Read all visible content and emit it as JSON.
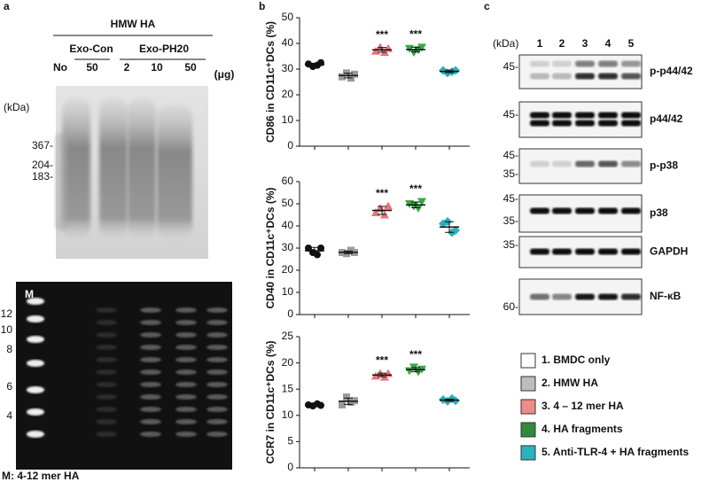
{
  "panel_a": {
    "label": "a",
    "group_title": "HMW HA",
    "sub_groups": [
      "Exo-Con",
      "Exo-PH20"
    ],
    "lanes": [
      "No",
      "50",
      "2",
      "10",
      "50"
    ],
    "unit": "(μg)",
    "kda": "(kDa)",
    "markers": [
      "367-",
      "204-",
      "183-"
    ],
    "lower_marker": "M",
    "lower_ticks": [
      "12",
      "10",
      "8",
      "6",
      "4"
    ],
    "caption": "M: 4-12 mer HA"
  },
  "panel_b_label": "b",
  "chart_data": [
    {
      "type": "scatter",
      "y_label": "CD86 in CD11c⁺DCs (%)",
      "ylim": [
        0,
        50
      ],
      "yticks": [
        0,
        10,
        20,
        30,
        40,
        50
      ],
      "series": [
        {
          "color": "#111111",
          "marker": "circle",
          "values": [
            32,
            31,
            31.5,
            32.5
          ],
          "mean": 31.7,
          "sd": 0.6
        },
        {
          "color": "#9a9a9a",
          "marker": "square",
          "values": [
            27,
            28.5,
            26.5,
            28
          ],
          "mean": 27.5,
          "sd": 0.9
        },
        {
          "color": "#e8737a",
          "marker": "triangle-up",
          "values": [
            37,
            38.5,
            36.5,
            38
          ],
          "mean": 37.5,
          "sd": 0.9,
          "annotation": "***"
        },
        {
          "color": "#3aa845",
          "marker": "triangle-down",
          "values": [
            38,
            36.5,
            37.5,
            38.5
          ],
          "mean": 37.6,
          "sd": 0.9,
          "annotation": "***"
        },
        {
          "color": "#2ab0b8",
          "marker": "diamond",
          "values": [
            29.5,
            28.5,
            29,
            29.5
          ],
          "mean": 29.1,
          "sd": 0.5
        }
      ]
    },
    {
      "type": "scatter",
      "y_label": "CD40 in CD11c⁺DCs (%)",
      "ylim": [
        0,
        60
      ],
      "yticks": [
        0,
        10,
        20,
        30,
        40,
        50,
        60
      ],
      "series": [
        {
          "color": "#111111",
          "marker": "circle",
          "values": [
            30,
            28,
            27,
            30
          ],
          "mean": 28.8,
          "sd": 1.5
        },
        {
          "color": "#9a9a9a",
          "marker": "square",
          "values": [
            28,
            27.5,
            29,
            28
          ],
          "mean": 28.1,
          "sd": 0.6
        },
        {
          "color": "#e8737a",
          "marker": "triangle-up",
          "values": [
            46,
            48,
            45,
            49
          ],
          "mean": 47,
          "sd": 1.8,
          "annotation": "***"
        },
        {
          "color": "#3aa845",
          "marker": "triangle-down",
          "values": [
            50,
            49,
            48,
            51
          ],
          "mean": 49.5,
          "sd": 1.3,
          "annotation": "***"
        },
        {
          "color": "#2ab0b8",
          "marker": "diamond",
          "values": [
            41,
            42,
            37,
            38
          ],
          "mean": 39.5,
          "sd": 2.4
        }
      ]
    },
    {
      "type": "scatter",
      "y_label": "CCR7 in CD11c⁺DCs (%)",
      "ylim": [
        0,
        25
      ],
      "yticks": [
        0,
        5,
        10,
        15,
        20,
        25
      ],
      "series": [
        {
          "color": "#111111",
          "marker": "circle",
          "values": [
            12,
            11.8,
            12.2,
            11.9
          ],
          "mean": 12,
          "sd": 0.2
        },
        {
          "color": "#9a9a9a",
          "marker": "square",
          "values": [
            12,
            13.5,
            12.5,
            12.8
          ],
          "mean": 12.7,
          "sd": 0.6
        },
        {
          "color": "#e8737a",
          "marker": "triangle-up",
          "values": [
            17.5,
            18,
            17.3,
            18
          ],
          "mean": 17.7,
          "sd": 0.35,
          "annotation": "***"
        },
        {
          "color": "#3aa845",
          "marker": "triangle-down",
          "values": [
            18.5,
            19.2,
            18.3,
            18.8
          ],
          "mean": 18.7,
          "sd": 0.4,
          "annotation": "***"
        },
        {
          "color": "#2ab0b8",
          "marker": "diamond",
          "values": [
            13,
            12.7,
            13.2,
            12.8
          ],
          "mean": 12.9,
          "sd": 0.2
        }
      ]
    }
  ],
  "panel_c": {
    "label": "c",
    "kda": "(kDa)",
    "lanes": [
      "1",
      "2",
      "3",
      "4",
      "5"
    ],
    "blots": [
      {
        "markers": [
          "45-"
        ],
        "name": "p-p44/42"
      },
      {
        "markers": [
          "45-"
        ],
        "name": "p44/42"
      },
      {
        "markers": [
          "45-",
          "35-"
        ],
        "name": "p-p38"
      },
      {
        "markers": [
          "45-",
          "35-"
        ],
        "name": "p38"
      },
      {
        "markers": [
          "35-"
        ],
        "name": "GAPDH"
      },
      {
        "markers": [
          "60-"
        ],
        "name": "NF-κB"
      }
    ]
  },
  "legend": [
    {
      "label": "1. BMDC only",
      "color": "#ffffff"
    },
    {
      "label": "2. HMW HA",
      "color": "#bdbdbd"
    },
    {
      "label": "3. 4 – 12 mer HA",
      "color": "#f08b8b"
    },
    {
      "label": "4. HA fragments",
      "color": "#2f8a3c"
    },
    {
      "label": "5. Anti-TLR-4 + HA fragments",
      "color": "#26b4bf"
    }
  ]
}
